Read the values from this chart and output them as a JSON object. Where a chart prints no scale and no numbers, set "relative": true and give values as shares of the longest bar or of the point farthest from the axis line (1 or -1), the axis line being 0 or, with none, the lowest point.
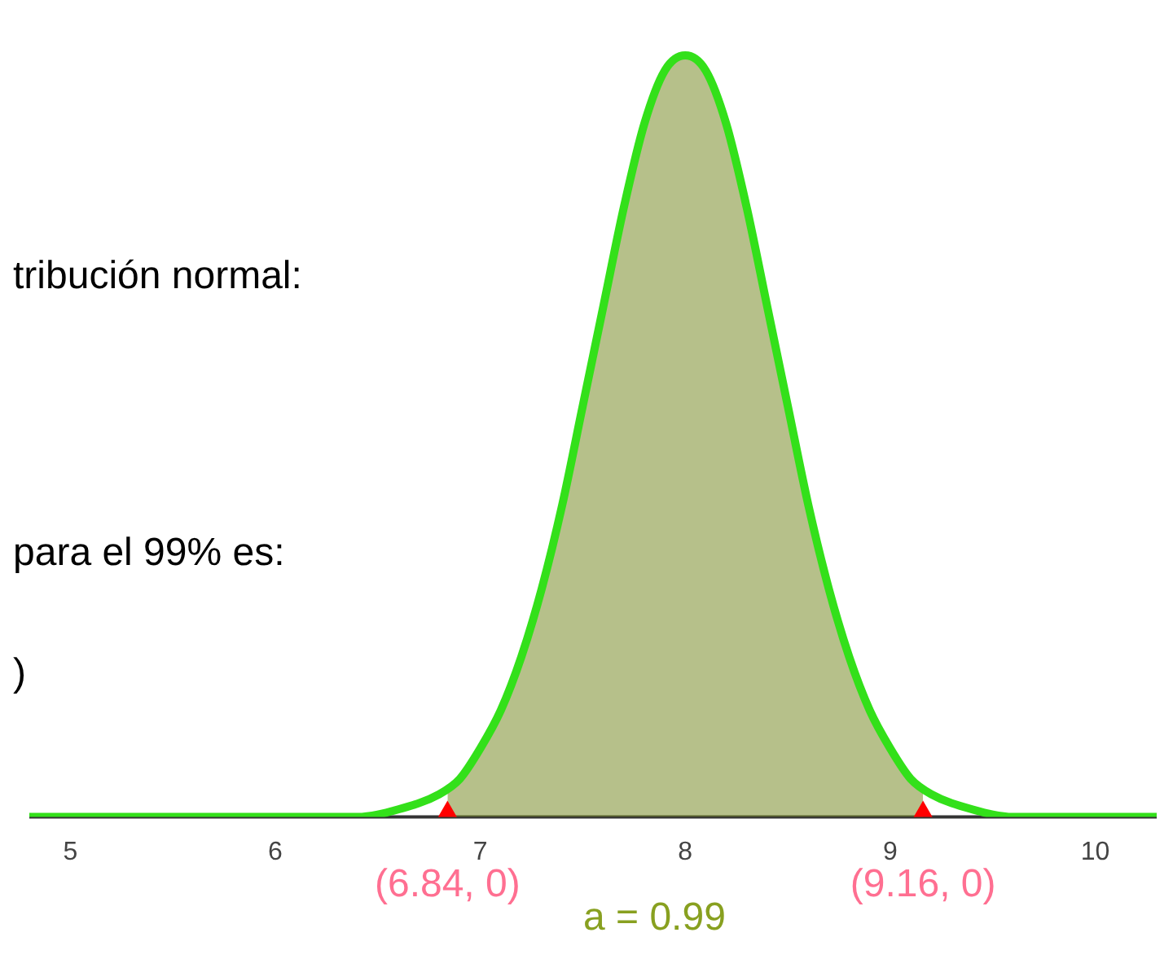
{
  "chart_data": {
    "type": "line",
    "relative": true,
    "xlim": [
      4.8,
      10.3
    ],
    "xticks": [
      5,
      6,
      7,
      8,
      9,
      10
    ],
    "grid": false,
    "legend": false,
    "series": [
      {
        "type": "area",
        "color": "#7a8c2a",
        "x": [
          6.84,
          6.9,
          7.0,
          7.1,
          7.2,
          7.3,
          7.4,
          7.5,
          7.6,
          7.7,
          7.8,
          7.9,
          8.0,
          8.1,
          8.2,
          8.3,
          8.4,
          8.5,
          8.6,
          8.7,
          8.8,
          8.9,
          9.0,
          9.1,
          9.16
        ],
        "values": [
          0.04,
          0.05,
          0.09,
          0.14,
          0.21,
          0.3,
          0.41,
          0.54,
          0.67,
          0.8,
          0.91,
          0.98,
          1,
          0.98,
          0.91,
          0.8,
          0.67,
          0.54,
          0.41,
          0.3,
          0.21,
          0.14,
          0.09,
          0.05,
          0.04
        ]
      },
      {
        "type": "line",
        "color": "#33e01a",
        "x": [
          4.8,
          6.0,
          6.4,
          6.6,
          6.8,
          6.9,
          7.0,
          7.1,
          7.2,
          7.3,
          7.4,
          7.5,
          7.6,
          7.7,
          7.8,
          7.9,
          8.0,
          8.1,
          8.2,
          8.3,
          8.4,
          8.5,
          8.6,
          8.7,
          8.8,
          8.9,
          9.0,
          9.1,
          9.2,
          9.4,
          9.6,
          10.0,
          10.3
        ],
        "values": [
          0,
          0,
          0,
          0.01,
          0.03,
          0.05,
          0.09,
          0.14,
          0.21,
          0.3,
          0.41,
          0.54,
          0.67,
          0.8,
          0.91,
          0.98,
          1,
          0.98,
          0.91,
          0.8,
          0.67,
          0.54,
          0.41,
          0.3,
          0.21,
          0.14,
          0.09,
          0.05,
          0.03,
          0.01,
          0,
          0,
          0
        ]
      },
      {
        "type": "scatter",
        "color": "#ff0000",
        "marker": "triangle",
        "x": [
          6.84,
          9.16
        ],
        "values": [
          0,
          0
        ]
      }
    ],
    "annotations": [
      "tribución normal:",
      "para el 99% es:",
      ")",
      {
        "text": "(6.84, 0)",
        "x": 6.84,
        "y": 0
      },
      {
        "text": "(9.16, 0)",
        "x": 9.16,
        "y": 0
      },
      "a = 0.99"
    ]
  }
}
